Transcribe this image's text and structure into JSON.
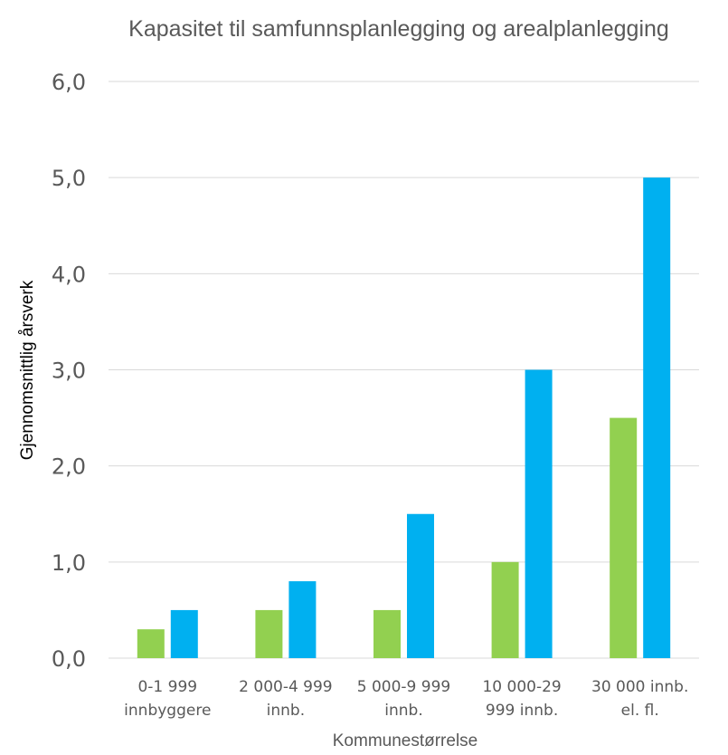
{
  "chart_data": {
    "type": "bar",
    "title": "Kapasitet til samfunnsplanlegging og arealplanlegging",
    "xlabel": "Kommunestørrelse",
    "ylabel": "Gjennomsnittlig årsverk",
    "ylim": [
      0,
      6
    ],
    "yticks": [
      "0,0",
      "1,0",
      "2,0",
      "3,0",
      "4,0",
      "5,0",
      "6,0"
    ],
    "grid": true,
    "categories": [
      [
        "0-1 999",
        "innbyggere"
      ],
      [
        "2 000-4 999",
        "innb."
      ],
      [
        "5 000-9 999",
        "innb."
      ],
      [
        "10 000-29",
        "999 innb."
      ],
      [
        "30 000 innb.",
        "el. fl."
      ]
    ],
    "series": [
      {
        "color": "#92d050",
        "values": [
          0.3,
          0.5,
          0.5,
          1.0,
          2.5
        ]
      },
      {
        "color": "#00b0f0",
        "values": [
          0.5,
          0.8,
          1.5,
          3.0,
          5.0
        ]
      }
    ]
  }
}
